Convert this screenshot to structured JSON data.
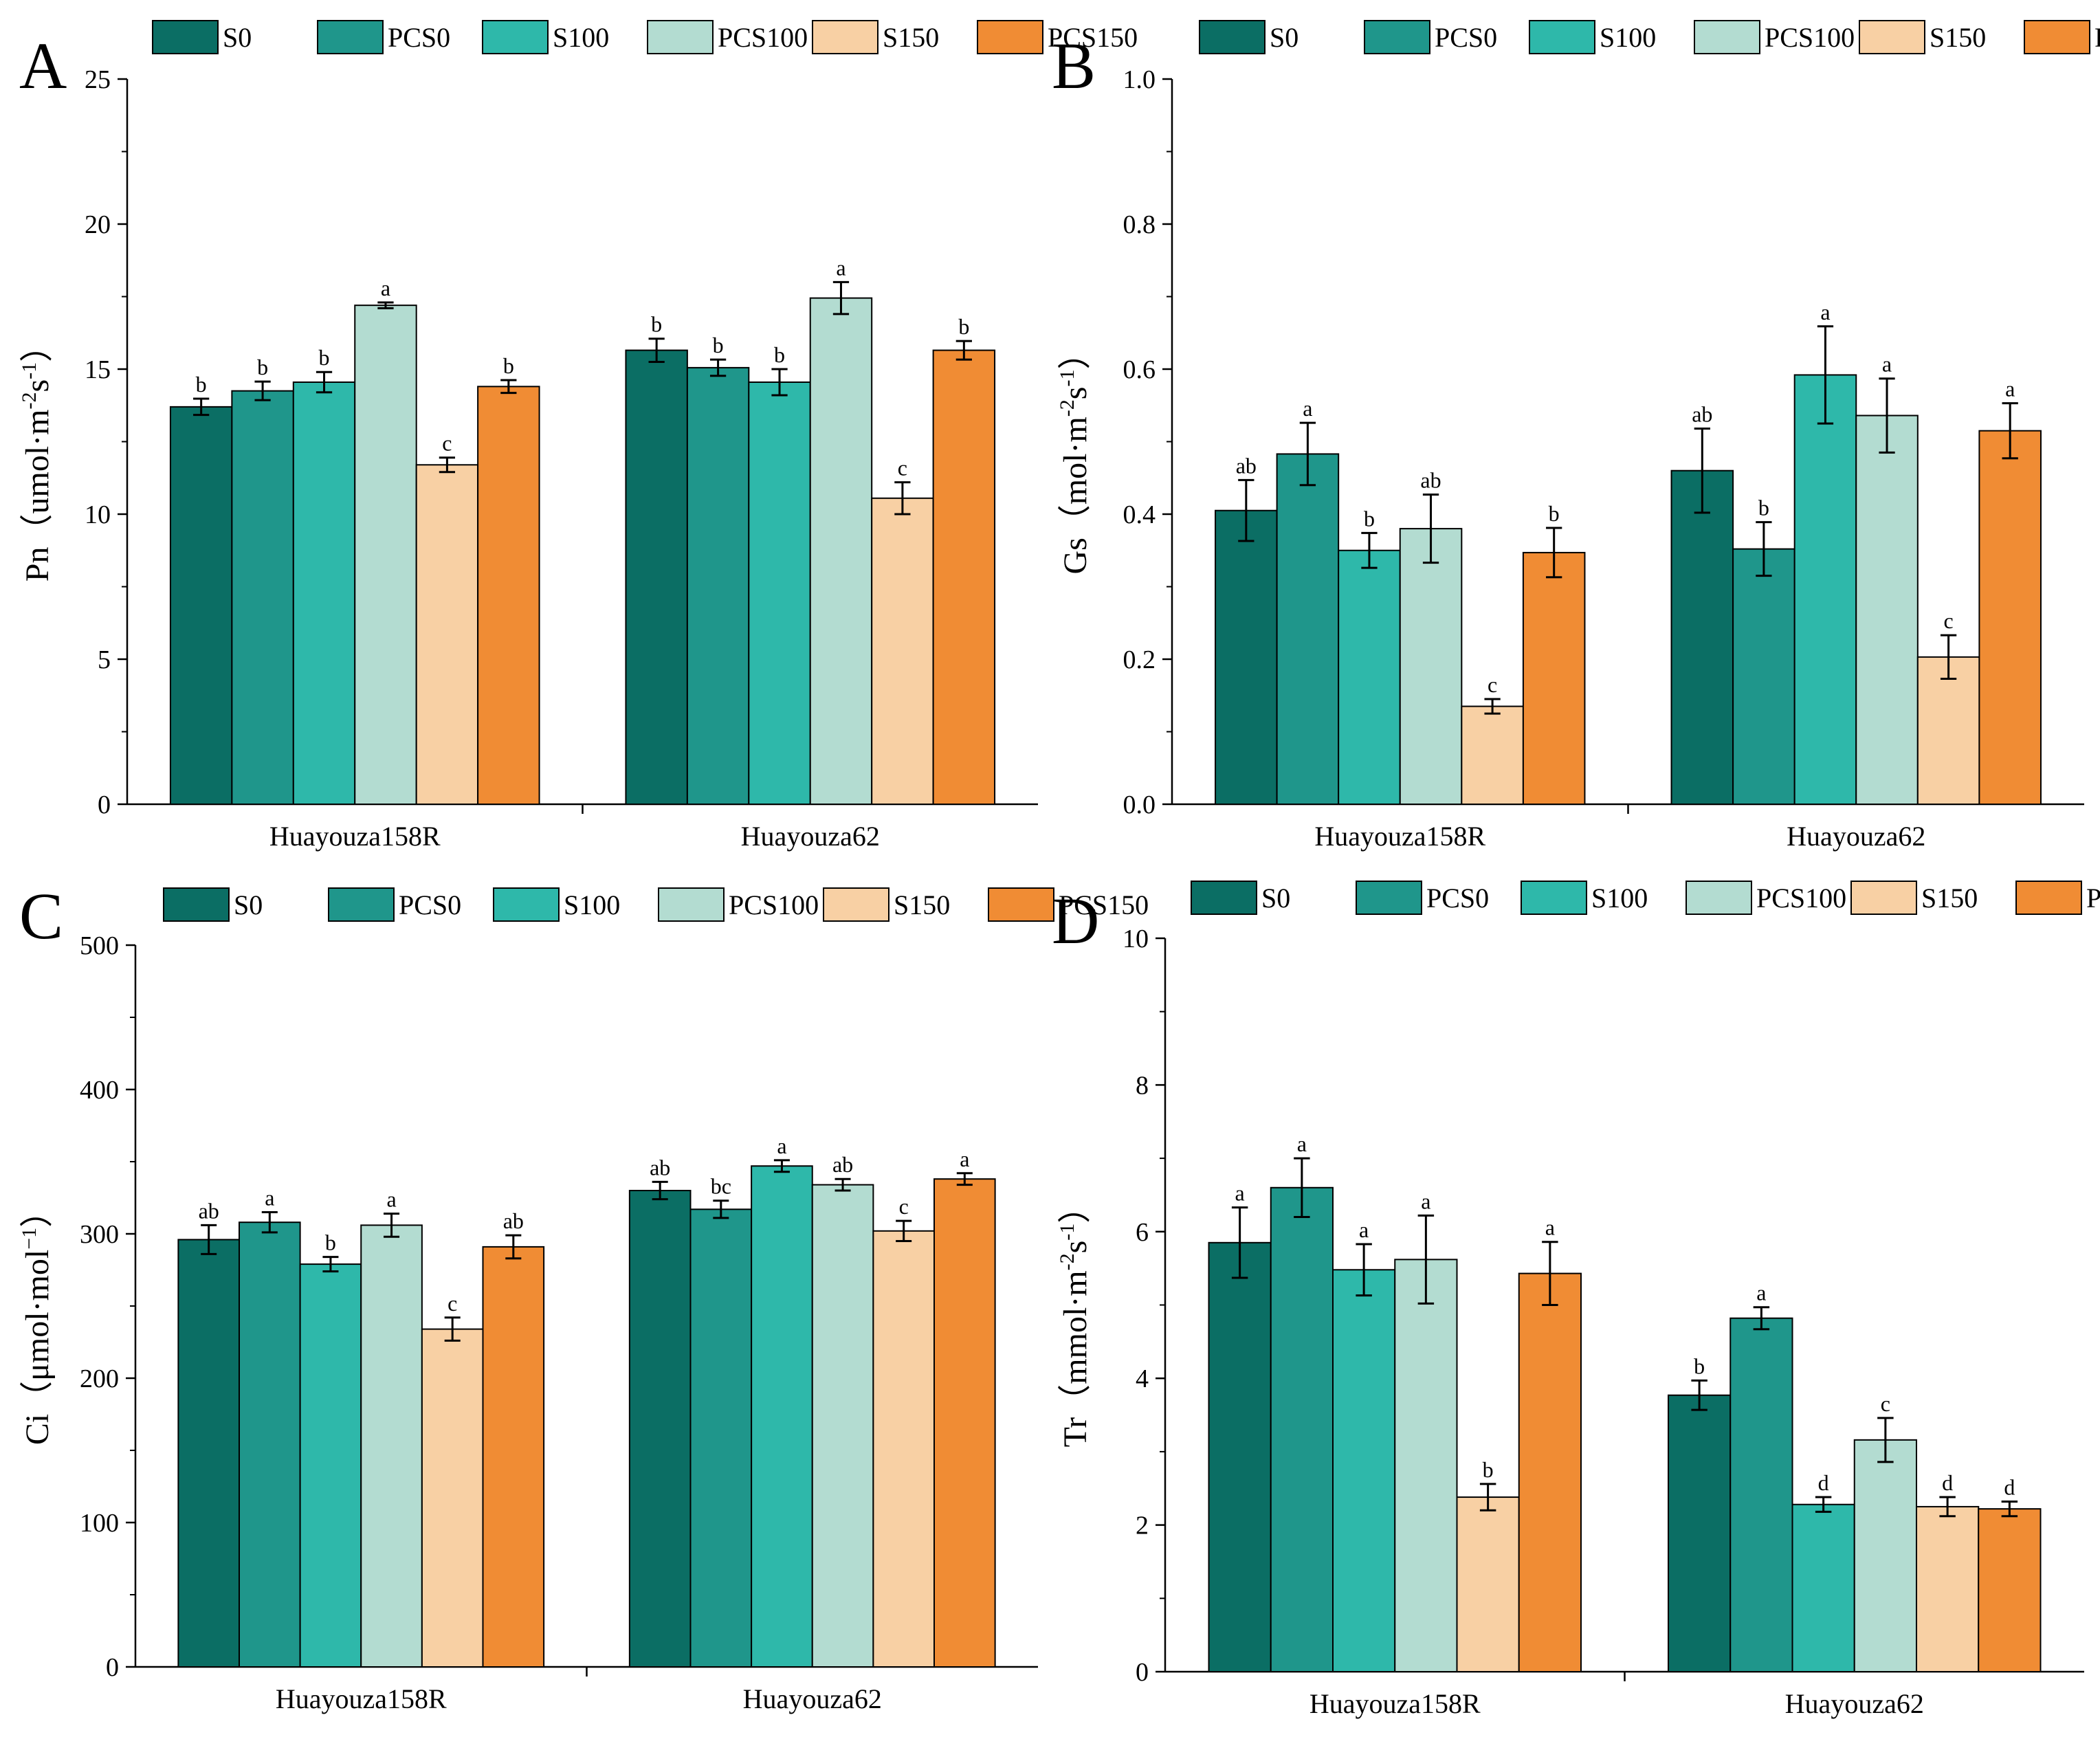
{
  "colors": {
    "S0": "#0b6e64",
    "PCS0": "#1f968b",
    "S100": "#2eb8aa",
    "PCS100": "#b3dcd1",
    "S150": "#f8d0a4",
    "PCS150": "#f08c34"
  },
  "legend_order": [
    "S0",
    "PCS0",
    "S100",
    "PCS100",
    "S150",
    "PCS150"
  ],
  "chart_data": [
    {
      "panel": "A",
      "type": "bar",
      "ylabel_main": "Pn（umol·m",
      "ylabel_sup1": "-2",
      "ylabel_mid": "s",
      "ylabel_sup2": "-1",
      "ylabel_end": "）",
      "ylim": [
        0,
        25
      ],
      "yticks": [
        0,
        5,
        10,
        15,
        20,
        25
      ],
      "categories": [
        "Huayouza158R",
        "Huayouza62"
      ],
      "series": [
        {
          "name": "S0",
          "values": [
            13.7,
            15.65
          ],
          "errors": [
            0.28,
            0.4
          ],
          "letters": [
            "b",
            "b"
          ]
        },
        {
          "name": "PCS0",
          "values": [
            14.25,
            15.05
          ],
          "errors": [
            0.32,
            0.28
          ],
          "letters": [
            "b",
            "b"
          ]
        },
        {
          "name": "S100",
          "values": [
            14.55,
            14.55
          ],
          "errors": [
            0.35,
            0.45
          ],
          "letters": [
            "b",
            "b"
          ]
        },
        {
          "name": "PCS100",
          "values": [
            17.2,
            17.45
          ],
          "errors": [
            0.1,
            0.55
          ],
          "letters": [
            "a",
            "a"
          ]
        },
        {
          "name": "S150",
          "values": [
            11.7,
            10.55
          ],
          "errors": [
            0.25,
            0.55
          ],
          "letters": [
            "c",
            "c"
          ]
        },
        {
          "name": "PCS150",
          "values": [
            14.4,
            15.65
          ],
          "errors": [
            0.22,
            0.32
          ],
          "letters": [
            "b",
            "b"
          ]
        }
      ]
    },
    {
      "panel": "B",
      "type": "bar",
      "ylabel_main": "Gs（mol·m",
      "ylabel_sup1": "-2",
      "ylabel_mid": "s",
      "ylabel_sup2": "-1",
      "ylabel_end": "）",
      "ylim": [
        0,
        1.0
      ],
      "yticks": [
        0.0,
        0.2,
        0.4,
        0.6,
        0.8,
        1.0
      ],
      "ytick_labels": [
        "0.0",
        "0.2",
        "0.4",
        "0.6",
        "0.8",
        "1.0"
      ],
      "categories": [
        "Huayouza158R",
        "Huayouza62"
      ],
      "series": [
        {
          "name": "S0",
          "values": [
            0.405,
            0.46
          ],
          "errors": [
            0.042,
            0.058
          ],
          "letters": [
            "ab",
            "ab"
          ]
        },
        {
          "name": "PCS0",
          "values": [
            0.483,
            0.352
          ],
          "errors": [
            0.043,
            0.037
          ],
          "letters": [
            "a",
            "b"
          ]
        },
        {
          "name": "S100",
          "values": [
            0.35,
            0.592
          ],
          "errors": [
            0.024,
            0.067
          ],
          "letters": [
            "b",
            "a"
          ]
        },
        {
          "name": "PCS100",
          "values": [
            0.38,
            0.536
          ],
          "errors": [
            0.047,
            0.051
          ],
          "letters": [
            "ab",
            "a"
          ]
        },
        {
          "name": "S150",
          "values": [
            0.135,
            0.203
          ],
          "errors": [
            0.01,
            0.03
          ],
          "letters": [
            "c",
            "c"
          ]
        },
        {
          "name": "PCS150",
          "values": [
            0.347,
            0.515
          ],
          "errors": [
            0.034,
            0.038
          ],
          "letters": [
            "b",
            "a"
          ]
        }
      ]
    },
    {
      "panel": "C",
      "type": "bar",
      "ylabel_main": "Ci（μmol·mol",
      "ylabel_sup1": "−1",
      "ylabel_mid": "",
      "ylabel_sup2": "",
      "ylabel_end": "）",
      "ylim": [
        0,
        500
      ],
      "yticks": [
        0,
        100,
        200,
        300,
        400,
        500
      ],
      "categories": [
        "Huayouza158R",
        "Huayouza62"
      ],
      "series": [
        {
          "name": "S0",
          "values": [
            296,
            330
          ],
          "errors": [
            10,
            6
          ],
          "letters": [
            "ab",
            "ab"
          ]
        },
        {
          "name": "PCS0",
          "values": [
            308,
            317
          ],
          "errors": [
            7,
            6
          ],
          "letters": [
            "a",
            "bc"
          ]
        },
        {
          "name": "S100",
          "values": [
            279,
            347
          ],
          "errors": [
            5,
            4
          ],
          "letters": [
            "b",
            "a"
          ]
        },
        {
          "name": "PCS100",
          "values": [
            306,
            334
          ],
          "errors": [
            8,
            4
          ],
          "letters": [
            "a",
            "ab"
          ]
        },
        {
          "name": "S150",
          "values": [
            234,
            302
          ],
          "errors": [
            8,
            7
          ],
          "letters": [
            "c",
            "c"
          ]
        },
        {
          "name": "PCS150",
          "values": [
            291,
            338
          ],
          "errors": [
            8,
            4
          ],
          "letters": [
            "ab",
            "a"
          ]
        }
      ]
    },
    {
      "panel": "D",
      "type": "bar",
      "ylabel_main": "Tr（mmol·m",
      "ylabel_sup1": "-2",
      "ylabel_mid": "s",
      "ylabel_sup2": "-1",
      "ylabel_end": "）",
      "ylim": [
        0,
        10
      ],
      "yticks": [
        0,
        2,
        4,
        6,
        8,
        10
      ],
      "categories": [
        "Huayouza158R",
        "Huayouza62"
      ],
      "series": [
        {
          "name": "S0",
          "values": [
            5.85,
            3.77
          ],
          "errors": [
            0.48,
            0.2
          ],
          "letters": [
            "a",
            "b"
          ]
        },
        {
          "name": "PCS0",
          "values": [
            6.6,
            4.82
          ],
          "errors": [
            0.4,
            0.15
          ],
          "letters": [
            "a",
            "a"
          ]
        },
        {
          "name": "S100",
          "values": [
            5.48,
            2.28
          ],
          "errors": [
            0.35,
            0.1
          ],
          "letters": [
            "a",
            "d"
          ]
        },
        {
          "name": "PCS100",
          "values": [
            5.62,
            3.16
          ],
          "errors": [
            0.6,
            0.3
          ],
          "letters": [
            "a",
            "c"
          ]
        },
        {
          "name": "S150",
          "values": [
            2.38,
            2.25
          ],
          "errors": [
            0.18,
            0.13
          ],
          "letters": [
            "b",
            "d"
          ]
        },
        {
          "name": "PCS150",
          "values": [
            5.43,
            2.22
          ],
          "errors": [
            0.43,
            0.1
          ],
          "letters": [
            "a",
            "d"
          ]
        }
      ]
    }
  ]
}
